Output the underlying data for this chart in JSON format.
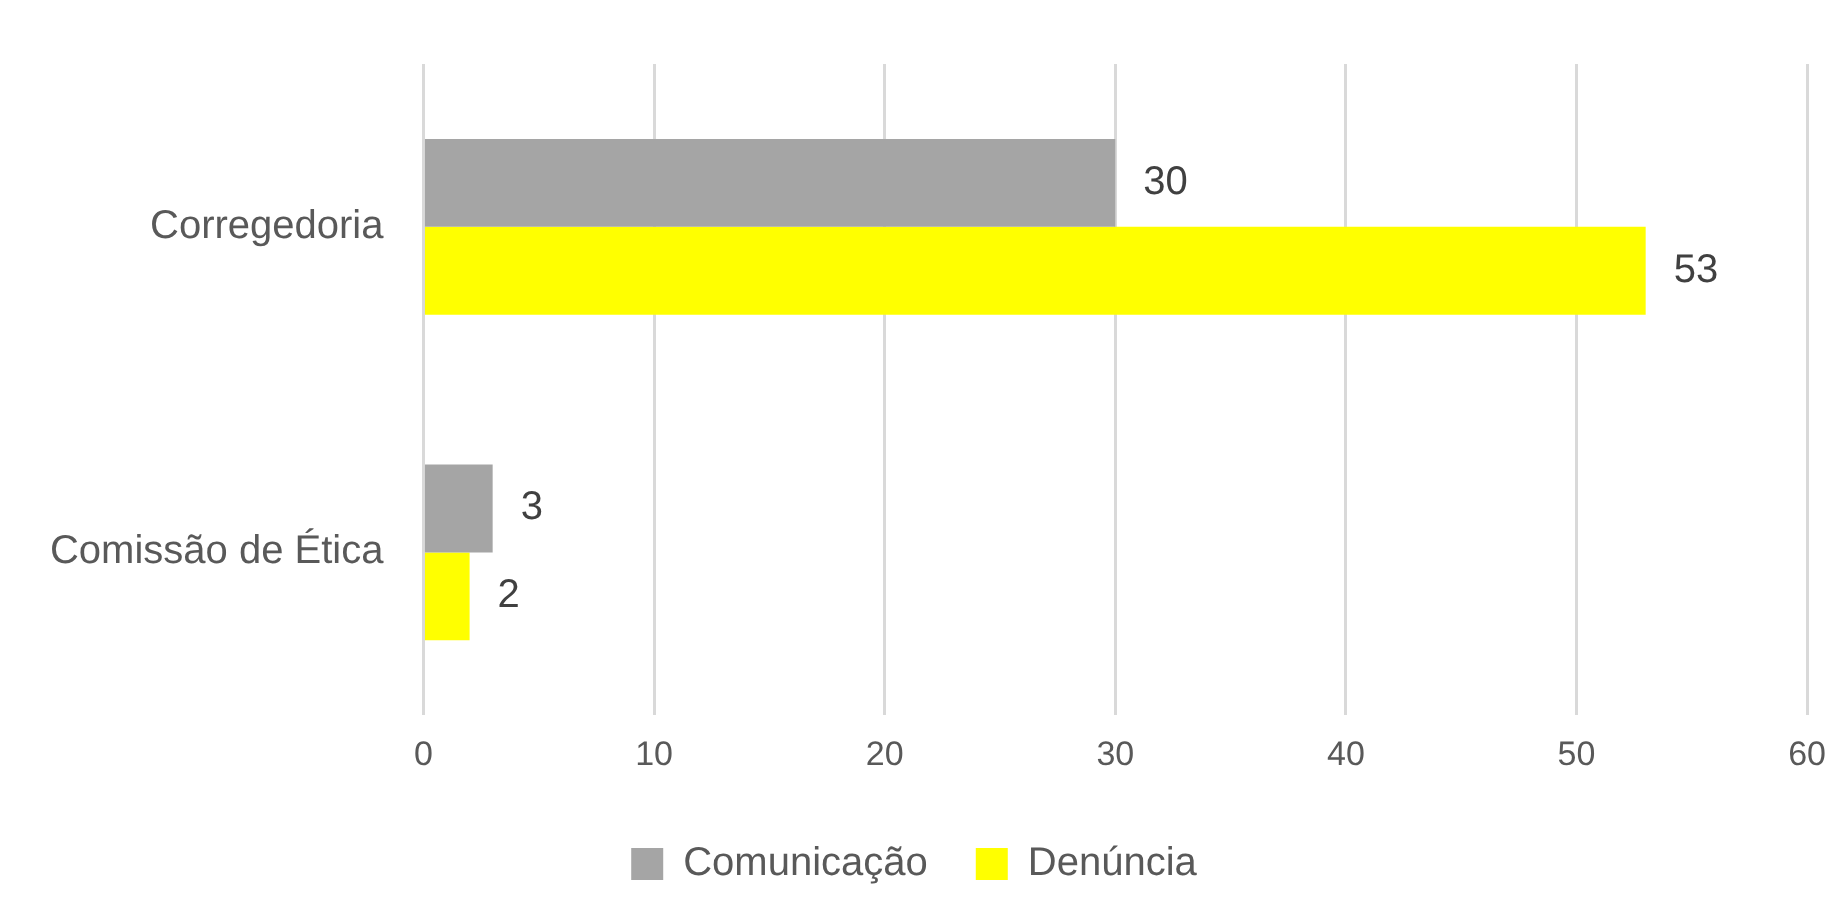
{
  "chart_data": {
    "type": "bar",
    "orientation": "horizontal",
    "categories": [
      "Corregedoria",
      "Comissão de Ética"
    ],
    "series": [
      {
        "name": "Comunicação",
        "color": "#a5a5a5",
        "values": [
          30,
          3
        ]
      },
      {
        "name": "Denúncia",
        "color": "#ffff00",
        "values": [
          53,
          2
        ]
      }
    ],
    "xlim": [
      0,
      60
    ],
    "xticks": [
      0,
      10,
      20,
      30,
      40,
      50,
      60
    ],
    "grid": "x",
    "legend": "bottom",
    "data_labels": true
  }
}
